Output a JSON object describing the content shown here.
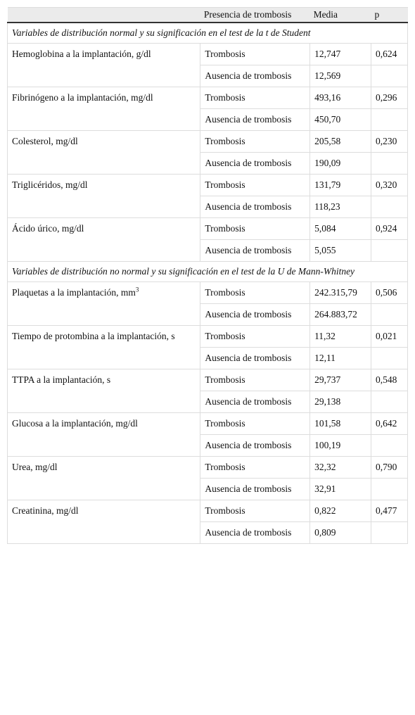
{
  "table": {
    "headers": [
      "Presencia de trombosis",
      "Media",
      "p"
    ],
    "sections": [
      {
        "title": "Variables de distribución normal y su significación en el test de la t de Student",
        "rows": [
          {
            "variable": "Hemoglobina a la implantación, g/dl",
            "p": "0,624",
            "groups": [
              {
                "label": "Trombosis",
                "media": "12,747"
              },
              {
                "label": "Ausencia de trombosis",
                "media": "12,569"
              }
            ]
          },
          {
            "variable": "Fibrinógeno a la implantación, mg/dl",
            "p": "0,296",
            "groups": [
              {
                "label": "Trombosis",
                "media": "493,16"
              },
              {
                "label": "Ausencia de trombosis",
                "media": "450,70"
              }
            ]
          },
          {
            "variable": "Colesterol, mg/dl",
            "p": "0,230",
            "groups": [
              {
                "label": "Trombosis",
                "media": "205,58"
              },
              {
                "label": "Ausencia de trombosis",
                "media": "190,09"
              }
            ]
          },
          {
            "variable": "Triglicéridos, mg/dl",
            "p": "0,320",
            "groups": [
              {
                "label": "Trombosis",
                "media": "131,79"
              },
              {
                "label": "Ausencia de trombosis",
                "media": "118,23"
              }
            ]
          },
          {
            "variable": "Ácido úrico, mg/dl",
            "p": "0,924",
            "groups": [
              {
                "label": "Trombosis",
                "media": "5,084"
              },
              {
                "label": "Ausencia de trombosis",
                "media": "5,055"
              }
            ]
          }
        ]
      },
      {
        "title": "Variables de distribución no normal y su significación en el test de la U de Mann-Whitney",
        "rows": [
          {
            "variable": "Plaquetas a la implantación, mm",
            "superscript": "3",
            "p": "0,506",
            "groups": [
              {
                "label": "Trombosis",
                "media": "242.315,79"
              },
              {
                "label": "Ausencia de trombosis",
                "media": "264.883,72"
              }
            ]
          },
          {
            "variable": "Tiempo de protombina a la implantación, s",
            "p": "0,021",
            "groups": [
              {
                "label": "Trombosis",
                "media": "11,32"
              },
              {
                "label": "Ausencia de trombosis",
                "media": "12,11"
              }
            ]
          },
          {
            "variable": "TTPA a la implantación, s",
            "p": "0,548",
            "groups": [
              {
                "label": "Trombosis",
                "media": "29,737"
              },
              {
                "label": "Ausencia de trombosis",
                "media": "29,138"
              }
            ]
          },
          {
            "variable": "Glucosa a la implantación, mg/dl",
            "p": "0,642",
            "groups": [
              {
                "label": "Trombosis",
                "media": "101,58"
              },
              {
                "label": "Ausencia de trombosis",
                "media": "100,19"
              }
            ]
          },
          {
            "variable": "Urea, mg/dl",
            "p": "0,790",
            "groups": [
              {
                "label": "Trombosis",
                "media": "32,32"
              },
              {
                "label": "Ausencia de trombosis",
                "media": "32,91"
              }
            ]
          },
          {
            "variable": "Creatinina, mg/dl",
            "p": "0,477",
            "groups": [
              {
                "label": "Trombosis",
                "media": "0,822"
              },
              {
                "label": "Ausencia de trombosis",
                "media": "0,809"
              }
            ]
          }
        ]
      }
    ]
  }
}
